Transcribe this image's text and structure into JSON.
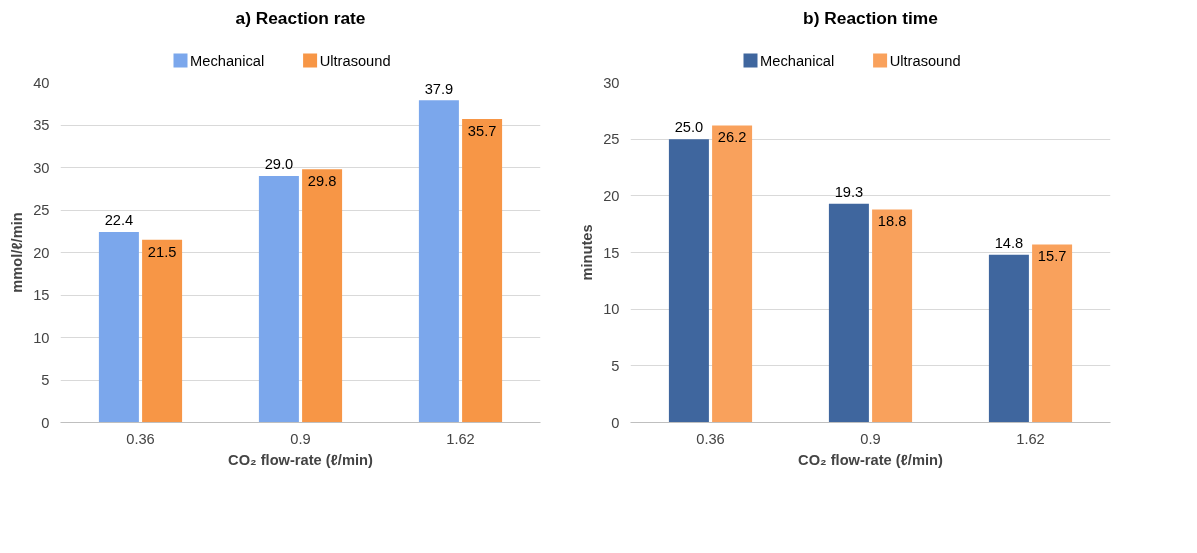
{
  "chart_data": [
    {
      "type": "bar",
      "title": "a) Reaction rate",
      "xlabel": "CO₂ flow-rate (ℓ/min)",
      "ylabel": "mmol/ℓ/min",
      "categories": [
        "0.36",
        "0.9",
        "1.62"
      ],
      "series": [
        {
          "name": "Mechanical",
          "color": "#7ba7ec",
          "values": [
            22.4,
            29.0,
            37.9
          ],
          "value_labels": [
            "22.4",
            "29.0",
            "37.9"
          ]
        },
        {
          "name": "Ultrasound",
          "color": "#f79646",
          "values": [
            21.5,
            29.8,
            35.7
          ],
          "value_labels": [
            "21.5",
            "29.8",
            "35.7"
          ]
        }
      ],
      "ylim": [
        0,
        40
      ],
      "yticks": [
        0,
        5,
        10,
        15,
        20,
        25,
        30,
        35,
        40
      ],
      "grid": "y",
      "legend": "top"
    },
    {
      "type": "bar",
      "title": "b) Reaction time",
      "xlabel": "CO₂ flow-rate (ℓ/min)",
      "ylabel": "minutes",
      "categories": [
        "0.36",
        "0.9",
        "1.62"
      ],
      "series": [
        {
          "name": "Mechanical",
          "color": "#3f669e",
          "values": [
            25.0,
            19.3,
            14.8
          ],
          "value_labels": [
            "25.0",
            "19.3",
            "14.8"
          ]
        },
        {
          "name": "Ultrasound",
          "color": "#f9a15c",
          "values": [
            26.2,
            18.8,
            15.7
          ],
          "value_labels": [
            "26.2",
            "18.8",
            "15.7"
          ]
        }
      ],
      "ylim": [
        0,
        30
      ],
      "yticks": [
        0,
        5,
        10,
        15,
        20,
        25,
        30
      ],
      "grid": "y",
      "legend": "top"
    }
  ]
}
